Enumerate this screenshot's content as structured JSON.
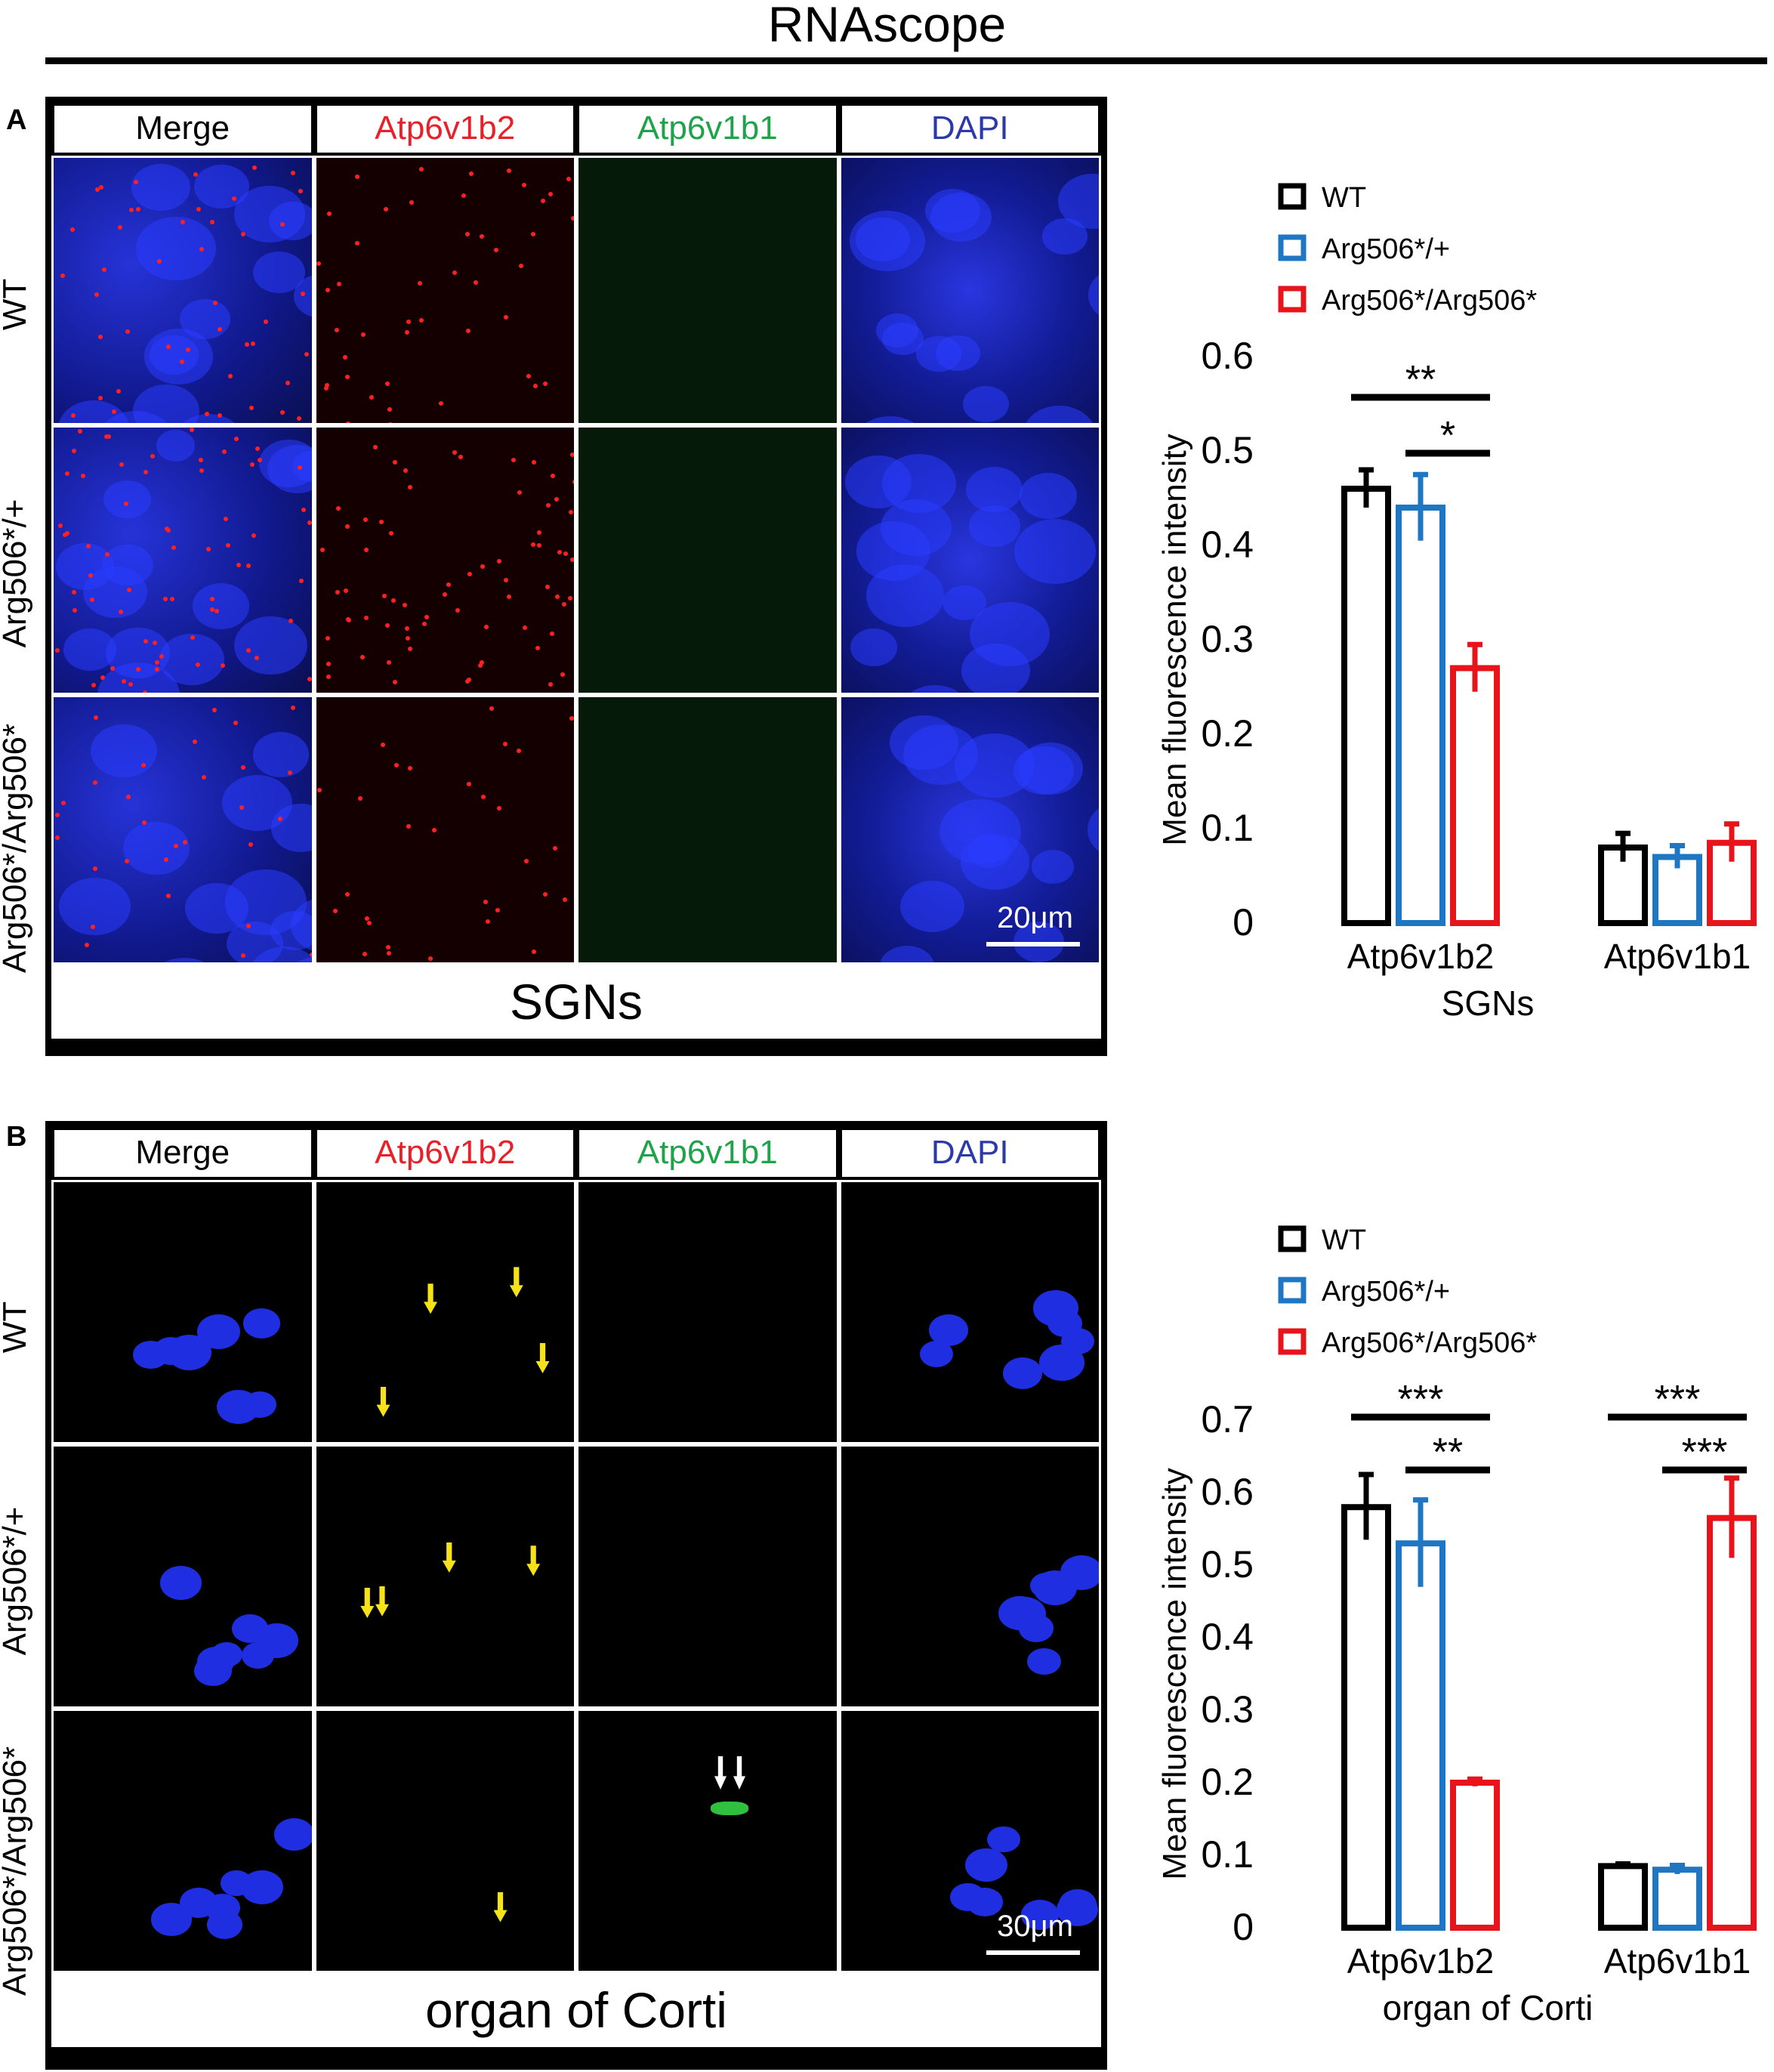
{
  "figure_title": "RNAscope",
  "columns": [
    "Merge",
    "Atp6v1b2",
    "Atp6v1b1",
    "DAPI"
  ],
  "column_colors": [
    "#000000",
    "#e8202a",
    "#1fa34a",
    "#2b3aa8"
  ],
  "rows": [
    "WT",
    "Arg506*/+",
    "Arg506*/Arg506*"
  ],
  "panel_a": {
    "label": "A",
    "footer": "SGNs",
    "scale_bar": "20μm"
  },
  "panel_b": {
    "label": "B",
    "footer": "organ of Corti",
    "scale_bar": "30μm"
  },
  "legend": [
    {
      "name": "WT",
      "color": "#000000"
    },
    {
      "name": "Arg506*/+",
      "color": "#1f77c4"
    },
    {
      "name": "Arg506*/Arg506*",
      "color": "#e8141c"
    }
  ],
  "chart_data": [
    {
      "type": "bar",
      "ylabel": "Mean fluorescence intensity",
      "xlabel": "SGNs",
      "categories": [
        "Atp6v1b2",
        "Atp6v1b1"
      ],
      "yticks": [
        "0",
        "0.1",
        "0.2",
        "0.3",
        "0.4",
        "0.5",
        "0.6"
      ],
      "ylim": [
        0,
        0.6
      ],
      "series": [
        {
          "name": "WT",
          "values": [
            0.46,
            0.08
          ],
          "errors": [
            0.02,
            0.015
          ]
        },
        {
          "name": "Arg506*/+",
          "values": [
            0.44,
            0.07
          ],
          "errors": [
            0.035,
            0.012
          ]
        },
        {
          "name": "Arg506*/Arg506*",
          "values": [
            0.27,
            0.085
          ],
          "errors": [
            0.025,
            0.02
          ]
        }
      ],
      "significance": [
        {
          "label": "**",
          "category": "Atp6v1b2",
          "from": "WT",
          "to": "Arg506*/Arg506*"
        },
        {
          "label": "*",
          "category": "Atp6v1b2",
          "from": "Arg506*/+",
          "to": "Arg506*/Arg506*"
        }
      ]
    },
    {
      "type": "bar",
      "ylabel": "Mean fluorescence intensity",
      "xlabel": "organ of Corti",
      "categories": [
        "Atp6v1b2",
        "Atp6v1b1"
      ],
      "yticks": [
        "0",
        "0.1",
        "0.2",
        "0.3",
        "0.4",
        "0.5",
        "0.6",
        "0.7"
      ],
      "ylim": [
        0,
        0.7
      ],
      "series": [
        {
          "name": "WT",
          "values": [
            0.58,
            0.085
          ],
          "errors": [
            0.045,
            0.003
          ]
        },
        {
          "name": "Arg506*/+",
          "values": [
            0.53,
            0.08
          ],
          "errors": [
            0.06,
            0.006
          ]
        },
        {
          "name": "Arg506*/Arg506*",
          "values": [
            0.2,
            0.565
          ],
          "errors": [
            0.005,
            0.055
          ]
        }
      ],
      "significance": [
        {
          "label": "***",
          "category": "Atp6v1b2",
          "from": "WT",
          "to": "Arg506*/Arg506*"
        },
        {
          "label": "**",
          "category": "Atp6v1b2",
          "from": "Arg506*/+",
          "to": "Arg506*/Arg506*"
        },
        {
          "label": "***",
          "category": "Atp6v1b1",
          "from": "WT",
          "to": "Arg506*/Arg506*"
        },
        {
          "label": "***",
          "category": "Atp6v1b1",
          "from": "Arg506*/+",
          "to": "Arg506*/Arg506*"
        }
      ]
    }
  ]
}
